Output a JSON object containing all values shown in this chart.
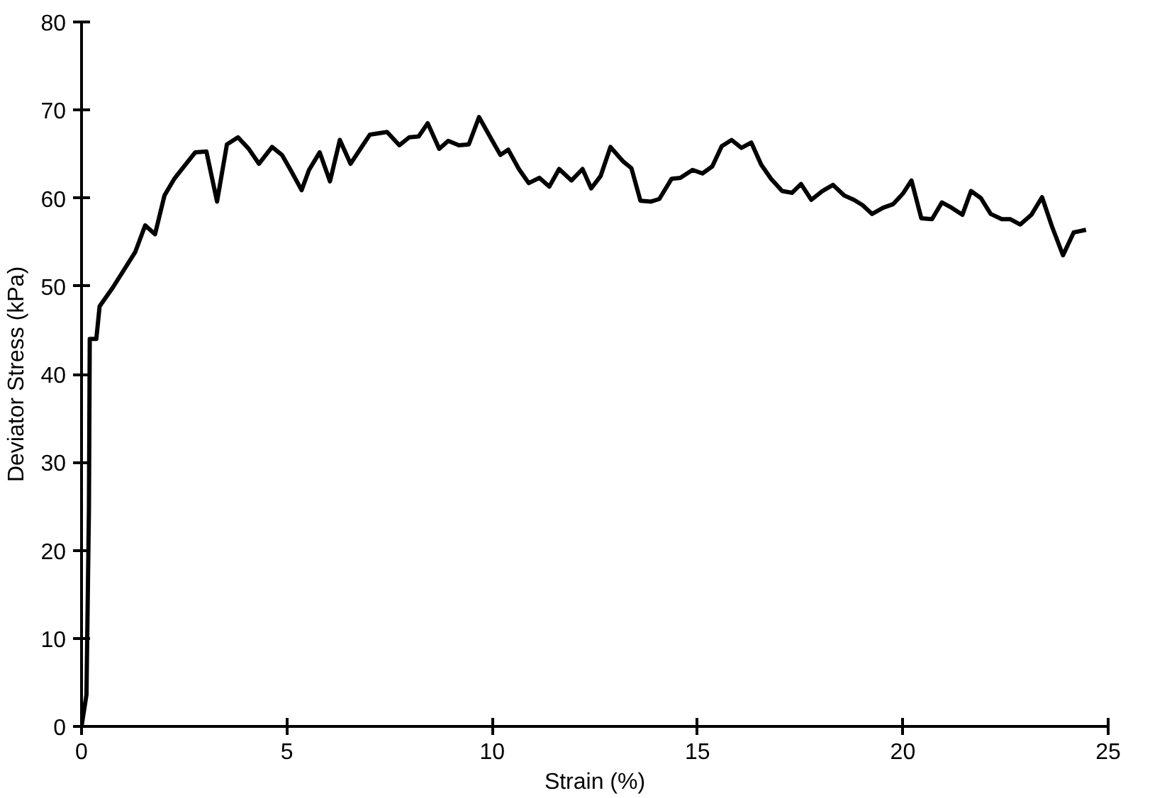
{
  "chart_data": {
    "type": "line",
    "xlabel": "Strain (%)",
    "ylabel": "Deviator Stress (kPa)",
    "xlim": [
      0,
      25
    ],
    "xticks": [
      0,
      5,
      10,
      15,
      20,
      25
    ],
    "ylim": [
      0,
      80
    ],
    "yticks": [
      0,
      10,
      20,
      30,
      40,
      50,
      60,
      70,
      80
    ],
    "grid": false,
    "marker": "none",
    "line_style": "solid",
    "series": [
      {
        "color": "#000000",
        "x": [
          0,
          0.12,
          0.18,
          0.2,
          0.36,
          0.44,
          0.77,
          1.31,
          1.55,
          1.79,
          2.02,
          2.26,
          2.77,
          3.04,
          3.3,
          3.54,
          3.81,
          4.07,
          4.32,
          4.64,
          4.88,
          5.09,
          5.36,
          5.54,
          5.8,
          6.05,
          6.29,
          6.55,
          7.02,
          7.44,
          7.74,
          7.98,
          8.21,
          8.43,
          8.71,
          8.93,
          9.19,
          9.43,
          9.68,
          9.98,
          10.2,
          10.39,
          10.65,
          10.89,
          11.15,
          11.39,
          11.63,
          11.93,
          12.2,
          12.41,
          12.64,
          12.88,
          13.18,
          13.39,
          13.61,
          13.87,
          14.07,
          14.37,
          14.58,
          14.88,
          15.12,
          15.36,
          15.59,
          15.83,
          16.07,
          16.31,
          16.55,
          16.79,
          17.06,
          17.3,
          17.52,
          17.77,
          18.04,
          18.3,
          18.57,
          18.81,
          19.02,
          19.25,
          19.52,
          19.76,
          20.0,
          20.21,
          20.45,
          20.71,
          20.95,
          21.19,
          21.45,
          21.66,
          21.9,
          22.14,
          22.41,
          22.62,
          22.86,
          23.13,
          23.39,
          23.63,
          23.9,
          24.16,
          24.46
        ],
        "values": [
          0,
          3.6,
          24.6,
          44.0,
          44.0,
          47.7,
          49.9,
          53.9,
          56.9,
          55.9,
          60.3,
          62.2,
          65.2,
          65.3,
          59.6,
          66.1,
          66.9,
          65.6,
          63.9,
          65.8,
          64.9,
          63.2,
          60.9,
          63.2,
          65.2,
          61.9,
          66.6,
          63.9,
          67.2,
          67.5,
          66.0,
          66.9,
          67.0,
          68.5,
          65.6,
          66.5,
          66.0,
          66.1,
          69.2,
          66.7,
          64.9,
          65.5,
          63.3,
          61.7,
          62.3,
          61.3,
          63.3,
          62.0,
          63.3,
          61.1,
          62.5,
          65.8,
          64.2,
          63.4,
          59.7,
          59.6,
          59.9,
          62.2,
          62.3,
          63.2,
          62.8,
          63.6,
          65.9,
          66.6,
          65.7,
          66.3,
          63.8,
          62.2,
          60.8,
          60.6,
          61.6,
          59.8,
          60.8,
          61.5,
          60.3,
          59.8,
          59.2,
          58.2,
          58.9,
          59.3,
          60.5,
          62.0,
          57.7,
          57.6,
          59.5,
          58.9,
          58.1,
          60.8,
          60.0,
          58.2,
          57.6,
          57.6,
          57.0,
          58.1,
          60.1,
          56.8,
          53.5,
          56.1,
          56.4
        ]
      }
    ]
  }
}
